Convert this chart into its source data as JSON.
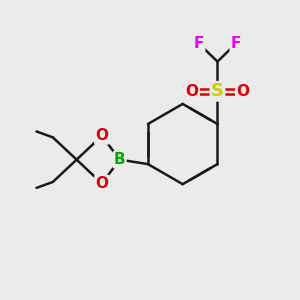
{
  "bg_color": "#ebebeb",
  "bond_color": "#1a1a1a",
  "bond_width": 1.8,
  "atom_colors": {
    "F": "#ee00ee",
    "S": "#cccc00",
    "O": "#dd0000",
    "B": "#00aa00",
    "C": "#1a1a1a"
  },
  "atom_fontsizes": {
    "F": 11,
    "S": 13,
    "O": 11,
    "B": 11,
    "C": 9
  },
  "xlim": [
    0,
    10
  ],
  "ylim": [
    0,
    10
  ]
}
